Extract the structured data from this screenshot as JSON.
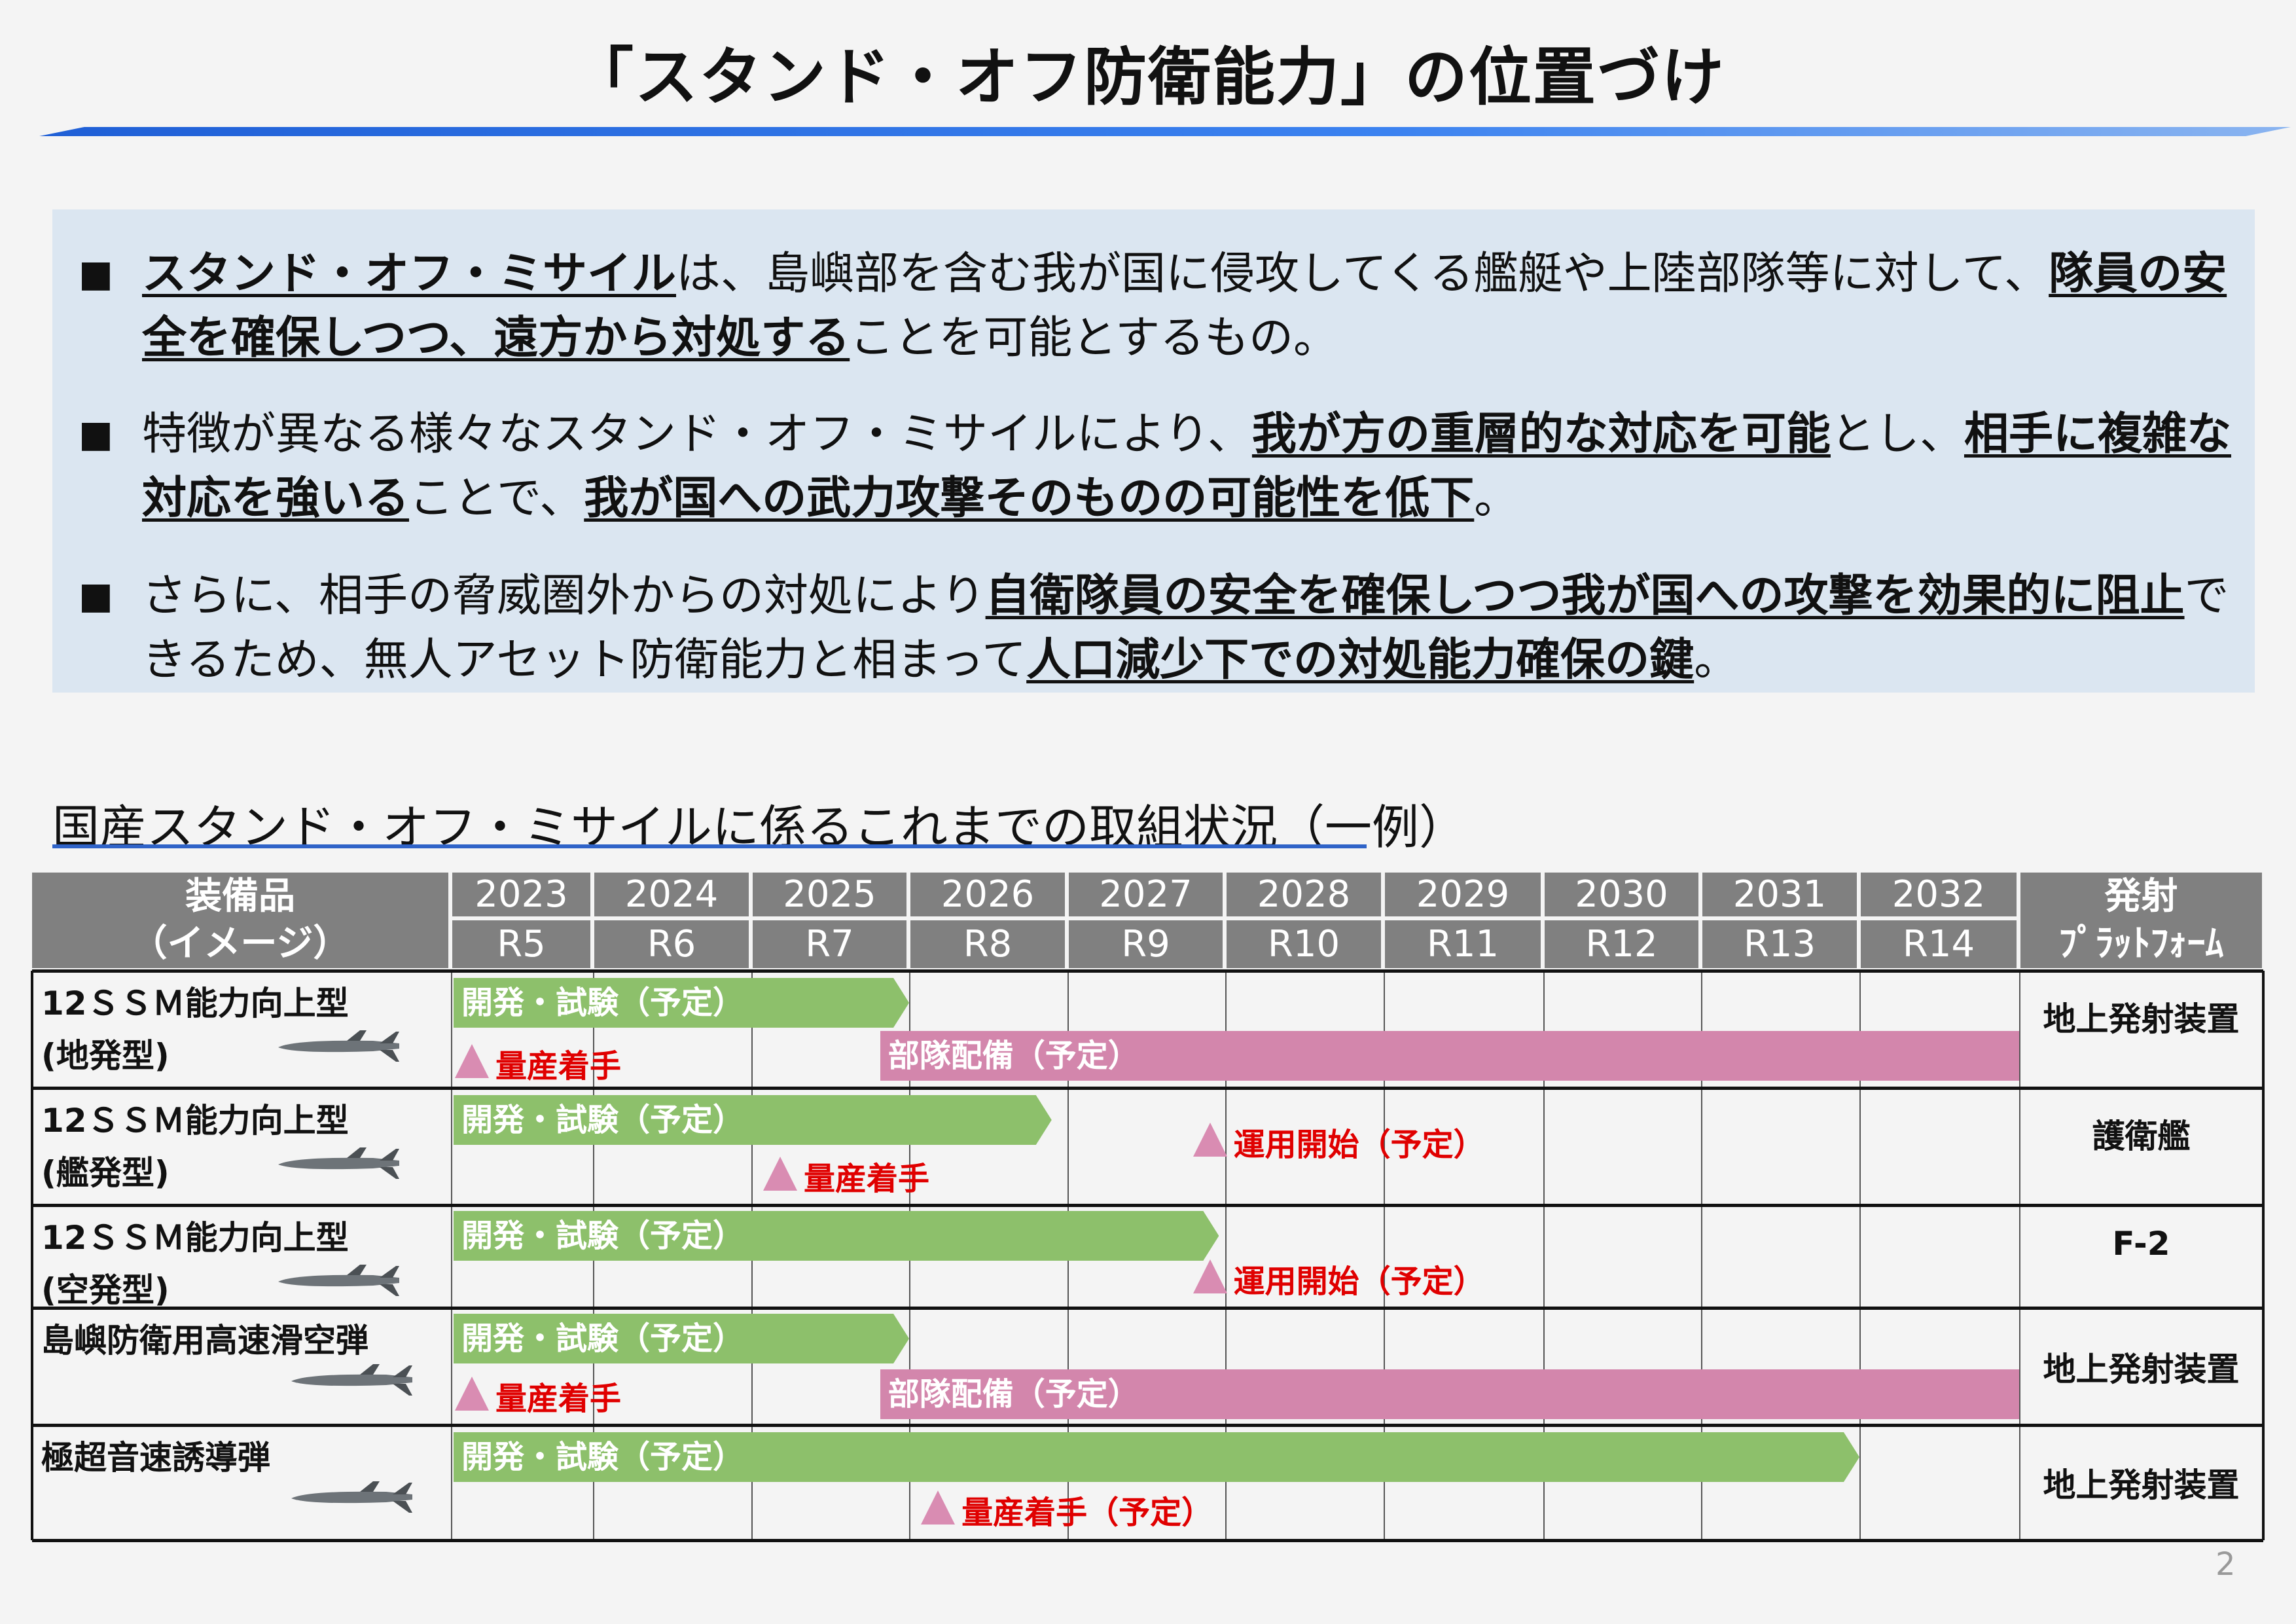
{
  "title": "「スタンド・オフ防衛能力」の位置づけ",
  "bullets": [
    [
      {
        "t": "スタンド・オフ・ミサイル",
        "b": true
      },
      {
        "t": "は、島嶼部を含む我が国に侵攻してくる艦艇や上陸部隊等に対して、",
        "b": false
      },
      {
        "t": "隊員の安全を確保しつつ、遠方から対処する",
        "b": true
      },
      {
        "t": "ことを可能とするもの。",
        "b": false
      }
    ],
    [
      {
        "t": "特徴が異なる様々なスタンド・オフ・ミサイルにより、",
        "b": false
      },
      {
        "t": "我が方の重層的な対応を可能",
        "b": true
      },
      {
        "t": "とし、",
        "b": false
      },
      {
        "t": "相手に複雑な対応を強いる",
        "b": true
      },
      {
        "t": "ことで、",
        "b": false
      },
      {
        "t": "我が国への武力攻撃そのものの可能性を低下",
        "b": true
      },
      {
        "t": "。",
        "b": false
      }
    ],
    [
      {
        "t": "さらに、相手の脅威圏外からの対処により",
        "b": false
      },
      {
        "t": "自衛隊員の安全を確保しつつ我が国への攻撃を効果的に阻止",
        "b": true
      },
      {
        "t": "できるため、無人アセット防衛能力と相まって",
        "b": false
      },
      {
        "t": "人口減少下での対処能力確保の鍵",
        "b": true
      },
      {
        "t": "。",
        "b": false
      }
    ]
  ],
  "bullet_marker": "■",
  "section_title": "国産スタンド・オフ・ミサイルに係るこれまでの取組状況（一例）",
  "table": {
    "header_item": [
      "装備品",
      "（イメージ）"
    ],
    "header_platform": [
      "発射",
      "ﾌﾟﾗｯﾄﾌｫｰﾑ"
    ],
    "years": [
      "2023",
      "2024",
      "2025",
      "2026",
      "2027",
      "2028",
      "2029",
      "2030",
      "2031",
      "2032"
    ],
    "reiwa": [
      "R5",
      "R6",
      "R7",
      "R8",
      "R9",
      "R10",
      "R11",
      "R12",
      "R13",
      "R14"
    ],
    "rows": [
      {
        "name": [
          "12ＳＳＭ能力向上型",
          "(地発型)"
        ],
        "platform": "地上発射装置",
        "icon": "missile-icon",
        "bars": [
          {
            "type": "green",
            "label": "開発・試験（予定）",
            "start": 2023,
            "end": 2026.0
          },
          {
            "type": "pink",
            "label": "部隊配備（予定）",
            "start": 2025.8,
            "end": 2033
          }
        ],
        "markers": [
          {
            "label": "量産着手",
            "at": 2023.0
          }
        ]
      },
      {
        "name": [
          "12ＳＳＭ能力向上型",
          "(艦発型)"
        ],
        "platform": "護衛艦",
        "icon": "missile-icon",
        "bars": [
          {
            "type": "green",
            "label": "開発・試験（予定）",
            "start": 2023,
            "end": 2026.9
          }
        ],
        "markers": [
          {
            "label": "量産着手",
            "at": 2025.05
          },
          {
            "label": "運用開始（予定）",
            "at": 2027.77
          }
        ]
      },
      {
        "name": [
          "12ＳＳＭ能力向上型",
          "(空発型)"
        ],
        "platform": "F-2",
        "icon": "missile-icon",
        "bars": [
          {
            "type": "green",
            "label": "開発・試験（予定）",
            "start": 2023,
            "end": 2027.96
          }
        ],
        "markers": [
          {
            "label": "運用開始（予定）",
            "at": 2027.77
          }
        ]
      },
      {
        "name": [
          "島嶼防衛用高速滑空弾",
          ""
        ],
        "platform": "地上発射装置",
        "icon": "glide-missile-icon",
        "bars": [
          {
            "type": "green",
            "label": "開発・試験（予定）",
            "start": 2023,
            "end": 2026.0
          },
          {
            "type": "pink",
            "label": "部隊配備（予定）",
            "start": 2025.8,
            "end": 2033
          }
        ],
        "markers": [
          {
            "label": "量産着手",
            "at": 2023.0
          }
        ]
      },
      {
        "name": [
          "極超音速誘導弾",
          ""
        ],
        "platform": "地上発射装置",
        "icon": "hypersonic-missile-icon",
        "bars": [
          {
            "type": "green",
            "label": "開発・試験（予定）",
            "start": 2023,
            "end": 2032.0
          }
        ],
        "markers": [
          {
            "label": "量産着手（予定）",
            "at": 2026.05
          }
        ]
      }
    ]
  },
  "colors": {
    "dev_bar": "#8dc06b",
    "deploy_bar": "#d386ac",
    "marker": "#d98cb2",
    "marker_text": "#e00000",
    "header": "#808080",
    "accent": "#2f63c8"
  },
  "page_number": "2"
}
